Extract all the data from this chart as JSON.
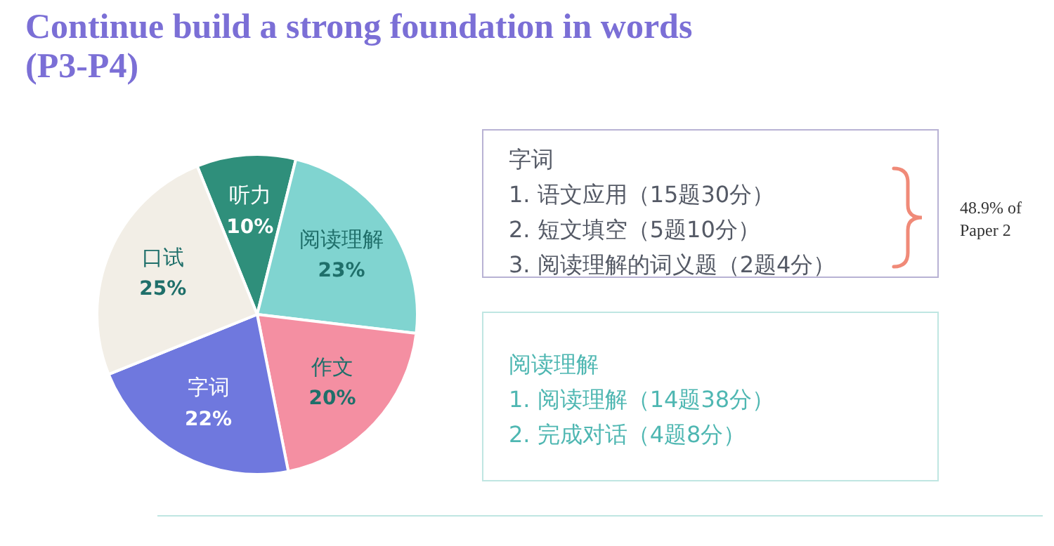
{
  "chart_data": {
    "type": "pie",
    "title": "Continue build a strong foundation in words (P3-P4)",
    "categories": [
      "听力",
      "阅读理解",
      "作文",
      "字词",
      "口试"
    ],
    "values": [
      10,
      23,
      20,
      22,
      25
    ],
    "value_labels": [
      "10%",
      "23%",
      "20%",
      "22%",
      "25%"
    ],
    "colors": [
      "#2f8f7b",
      "#80d4d0",
      "#f48fa2",
      "#6f78de",
      "#f2eee6"
    ],
    "legend": false,
    "annotations": [
      "字词",
      "1. 语文应用（15题30分）",
      "2. 短文填空（5题10分）",
      "3. 阅读理解的词义题（2题4分）",
      "48.9% of Paper 2",
      "阅读理解",
      "1.  阅读理解（14题38分）",
      "2.  完成对话（4题8分）"
    ]
  }
}
